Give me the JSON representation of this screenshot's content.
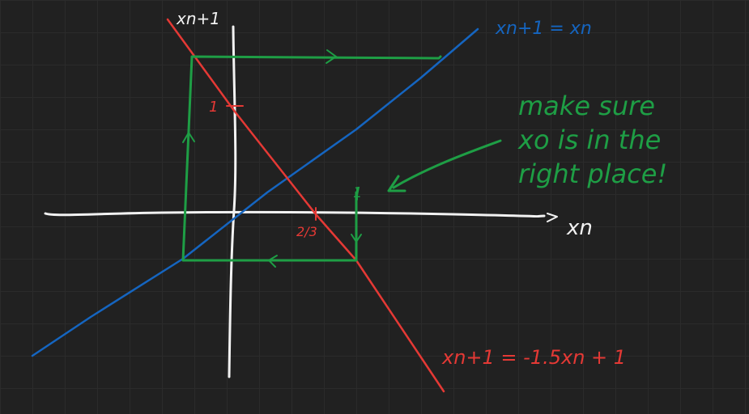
{
  "labels": {
    "y_axis": "xn+1",
    "x_axis": "xn",
    "identity_line": "xn+1 = xn",
    "function_line": "xn+1 = -1.5xn + 1",
    "y_intercept": "1",
    "x_intercept": "2/3",
    "x0_tick": "1"
  },
  "note": {
    "line1": "make sure",
    "line2": "xo is in the",
    "line3": "right place!"
  },
  "colors": {
    "background": "#212121",
    "axes": "#f2f2f2",
    "identity": "#1565c0",
    "function": "#e53935",
    "cobweb": "#1e9e45"
  }
}
